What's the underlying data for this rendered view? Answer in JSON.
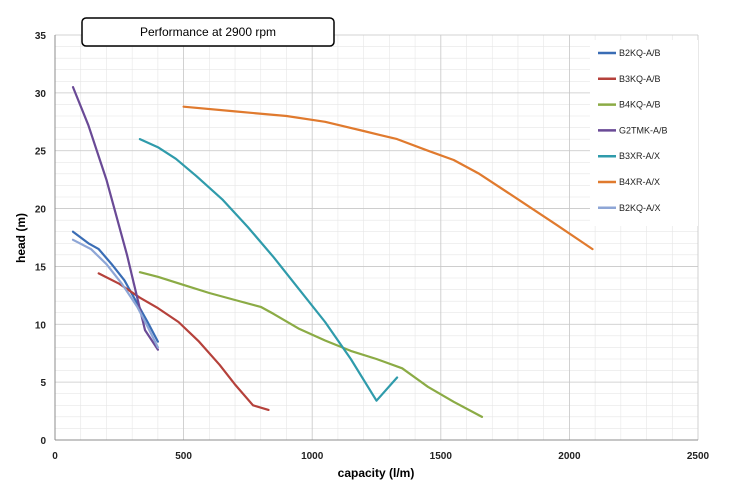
{
  "chart_data": {
    "type": "line",
    "title": "Performance at 2900 rpm",
    "xlabel": "capacity (l/m)",
    "ylabel": "head (m)",
    "xlim": [
      0,
      2500
    ],
    "ylim": [
      0,
      35
    ],
    "x_ticks": [
      0,
      500,
      1000,
      1500,
      2000,
      2500
    ],
    "y_ticks": [
      0,
      5,
      10,
      15,
      20,
      25,
      30,
      35
    ],
    "grid": true,
    "legend_position": "right",
    "series": [
      {
        "name": "B2KQ-A/B",
        "color": "#3a6db5",
        "x": [
          70,
          130,
          170,
          220,
          270,
          320,
          360,
          400
        ],
        "y": [
          18.0,
          17.0,
          16.5,
          15.2,
          13.8,
          11.8,
          10.2,
          8.5
        ]
      },
      {
        "name": "B3KQ-A/B",
        "color": "#b5413b",
        "x": [
          170,
          250,
          330,
          400,
          480,
          560,
          640,
          700,
          770,
          830
        ],
        "y": [
          14.4,
          13.5,
          12.3,
          11.4,
          10.2,
          8.5,
          6.5,
          4.8,
          3.0,
          2.6
        ]
      },
      {
        "name": "B4KQ-A/B",
        "color": "#8bab45",
        "x": [
          330,
          400,
          500,
          600,
          700,
          800,
          850,
          950,
          1050,
          1150,
          1250,
          1350,
          1450,
          1550,
          1660
        ],
        "y": [
          14.5,
          14.1,
          13.4,
          12.7,
          12.1,
          11.5,
          10.9,
          9.6,
          8.6,
          7.7,
          7.0,
          6.2,
          4.6,
          3.3,
          2.0
        ]
      },
      {
        "name": "G2TMK-A/B",
        "color": "#6a4a96",
        "x": [
          70,
          130,
          200,
          280,
          350,
          400
        ],
        "y": [
          30.5,
          27.2,
          22.5,
          16.0,
          9.5,
          7.8
        ]
      },
      {
        "name": "B3XR-A/X",
        "color": "#2f9bab",
        "x": [
          330,
          400,
          470,
          550,
          650,
          750,
          850,
          950,
          1050,
          1150,
          1250,
          1330
        ],
        "y": [
          26.0,
          25.3,
          24.3,
          22.8,
          20.8,
          18.4,
          15.8,
          13.0,
          10.2,
          7.0,
          3.4,
          5.4
        ]
      },
      {
        "name": "B4XR-A/X",
        "color": "#e07a2e",
        "x": [
          500,
          700,
          900,
          1050,
          1200,
          1330,
          1450,
          1550,
          1650,
          1800,
          1950,
          2090
        ],
        "y": [
          28.8,
          28.4,
          28.0,
          27.5,
          26.7,
          26.0,
          25.0,
          24.2,
          23.0,
          20.8,
          18.6,
          16.5
        ]
      },
      {
        "name": "B2KQ-A/X",
        "color": "#8ea6d6",
        "x": [
          70,
          140,
          200,
          260,
          320,
          360,
          400
        ],
        "y": [
          17.3,
          16.5,
          15.2,
          13.5,
          11.5,
          9.8,
          8.0
        ]
      }
    ]
  }
}
